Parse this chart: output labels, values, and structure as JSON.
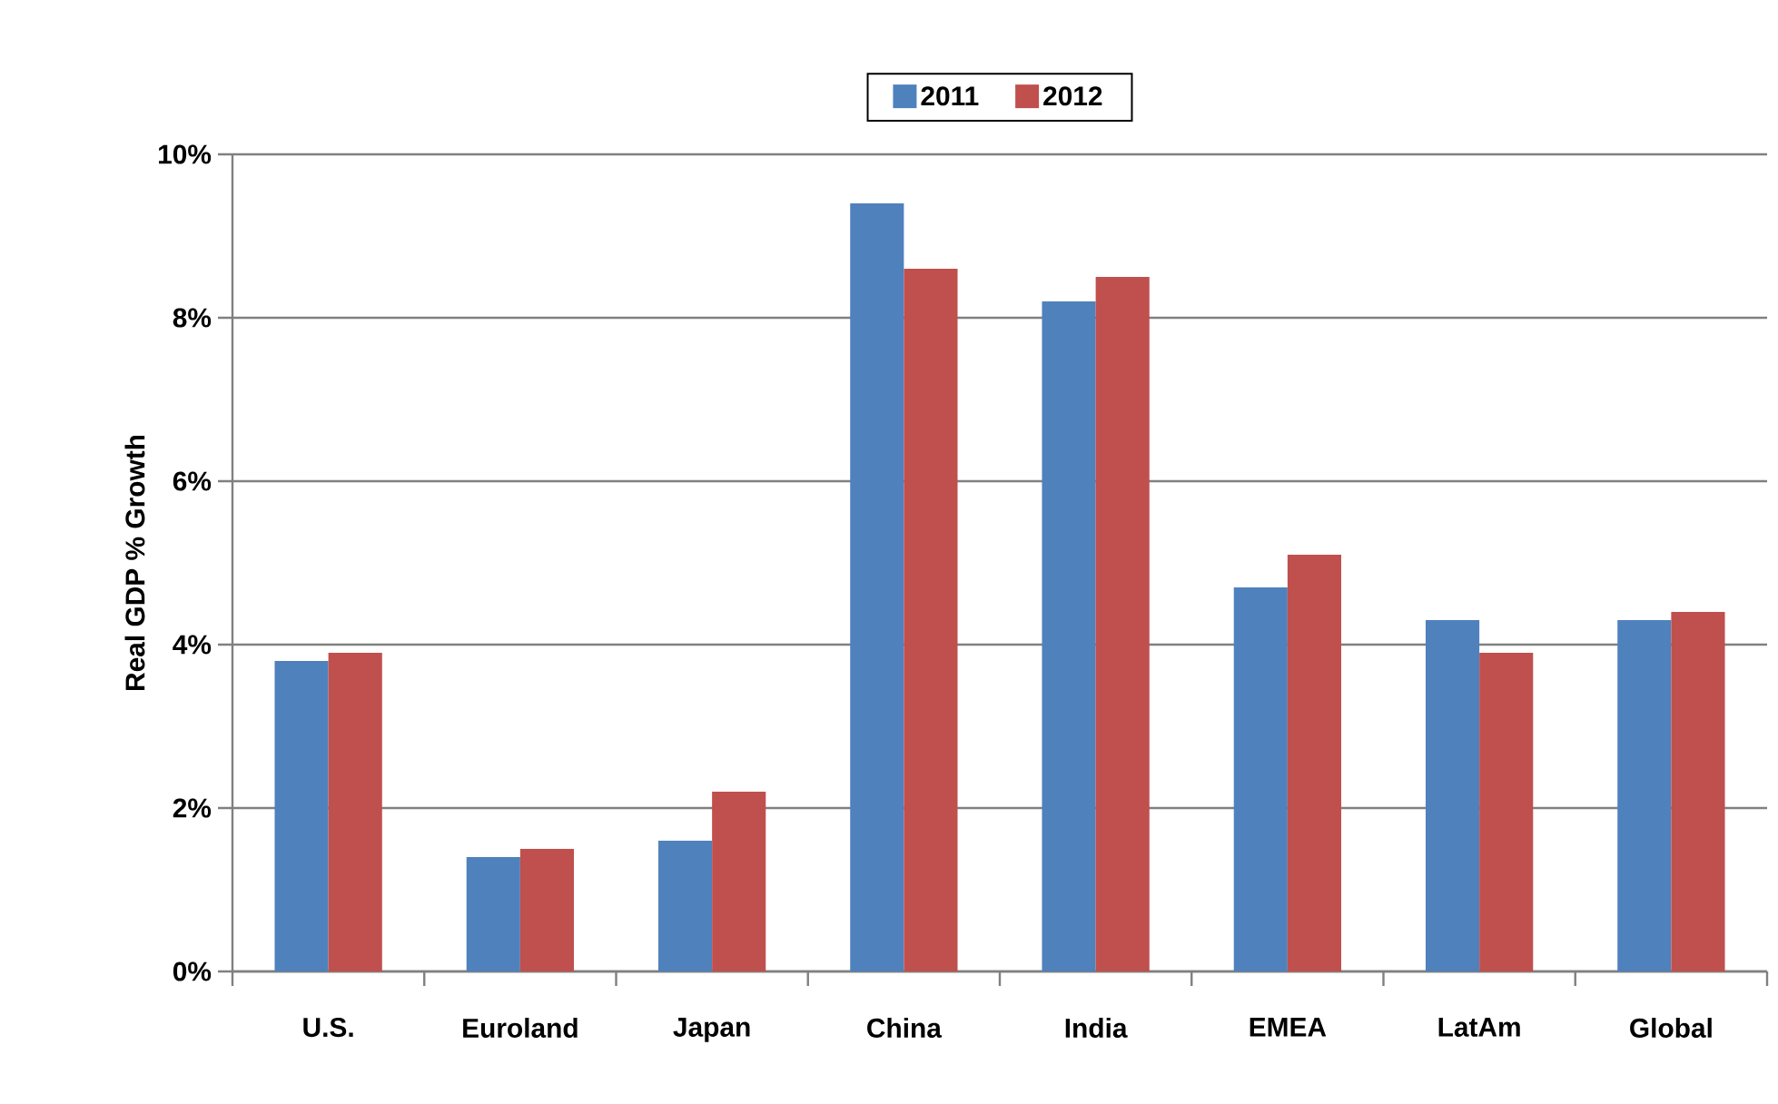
{
  "chart_data": {
    "type": "bar",
    "ylabel": "Real GDP % Growth",
    "categories": [
      "U.S.",
      "Euroland",
      "Japan",
      "China",
      "India",
      "EMEA",
      "LatAm",
      "Global"
    ],
    "series": [
      {
        "name": "2011",
        "color": "#4f81bd",
        "values": [
          3.8,
          1.4,
          1.6,
          9.4,
          8.2,
          4.7,
          4.3,
          4.3
        ]
      },
      {
        "name": "2012",
        "color": "#c0504d",
        "values": [
          3.9,
          1.5,
          2.2,
          8.6,
          8.5,
          5.1,
          3.9,
          4.4
        ]
      }
    ],
    "ylim": [
      0,
      10
    ],
    "yticks": [
      {
        "value": 0,
        "label": "0%"
      },
      {
        "value": 2,
        "label": "2%"
      },
      {
        "value": 4,
        "label": "4%"
      },
      {
        "value": 6,
        "label": "6%"
      },
      {
        "value": 8,
        "label": "8%"
      },
      {
        "value": 10,
        "label": "10%"
      }
    ],
    "grid": "y",
    "legend": "top"
  }
}
